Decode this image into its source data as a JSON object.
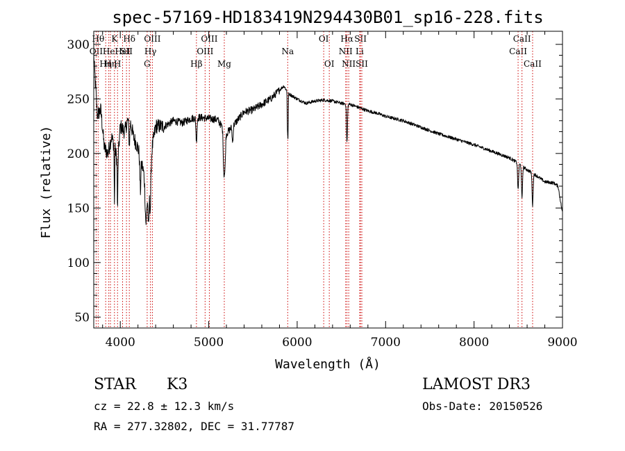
{
  "chart_data": {
    "type": "line",
    "title": "spec-57169-HD183419N294430B01_sp16-228.fits",
    "xlabel": "Wavelength (Å)",
    "ylabel": "Flux (relative)",
    "xlim": [
      3700,
      9000
    ],
    "ylim": [
      40,
      312
    ],
    "x_ticks": [
      4000,
      5000,
      6000,
      7000,
      8000,
      9000
    ],
    "y_ticks": [
      50,
      100,
      150,
      200,
      250,
      300
    ],
    "continuum": [
      [
        3700,
        290
      ],
      [
        3740,
        235
      ],
      [
        3780,
        240
      ],
      [
        3820,
        205
      ],
      [
        3860,
        200
      ],
      [
        3900,
        215
      ],
      [
        3940,
        205
      ],
      [
        3970,
        190
      ],
      [
        4000,
        225
      ],
      [
        4050,
        220
      ],
      [
        4100,
        235
      ],
      [
        4150,
        215
      ],
      [
        4200,
        205
      ],
      [
        4250,
        188
      ],
      [
        4290,
        172
      ],
      [
        4320,
        155
      ],
      [
        4360,
        205
      ],
      [
        4400,
        225
      ],
      [
        4500,
        225
      ],
      [
        4600,
        230
      ],
      [
        4700,
        228
      ],
      [
        4800,
        232
      ],
      [
        4900,
        233
      ],
      [
        5000,
        232
      ],
      [
        5100,
        231
      ],
      [
        5200,
        218
      ],
      [
        5300,
        228
      ],
      [
        5400,
        238
      ],
      [
        5500,
        240
      ],
      [
        5600,
        245
      ],
      [
        5700,
        250
      ],
      [
        5800,
        258
      ],
      [
        5850,
        262
      ],
      [
        5900,
        255
      ],
      [
        6000,
        250
      ],
      [
        6100,
        246
      ],
      [
        6200,
        248
      ],
      [
        6300,
        249
      ],
      [
        6400,
        248
      ],
      [
        6500,
        246
      ],
      [
        6600,
        245
      ],
      [
        6700,
        242
      ],
      [
        6800,
        239
      ],
      [
        6900,
        237
      ],
      [
        7000,
        234
      ],
      [
        7200,
        230
      ],
      [
        7400,
        224
      ],
      [
        7600,
        218
      ],
      [
        7800,
        213
      ],
      [
        8000,
        208
      ],
      [
        8200,
        202
      ],
      [
        8400,
        196
      ],
      [
        8500,
        191
      ],
      [
        8600,
        185
      ],
      [
        8700,
        180
      ],
      [
        8800,
        174
      ],
      [
        8900,
        173
      ],
      [
        8950,
        170
      ],
      [
        9000,
        145
      ]
    ],
    "absorption_features": [
      [
        3934,
        1,
        55
      ],
      [
        3969,
        1,
        45
      ],
      [
        4102,
        2,
        25
      ],
      [
        4227,
        2,
        30
      ],
      [
        4290,
        3,
        35
      ],
      [
        4320,
        2,
        25
      ],
      [
        4340,
        2,
        30
      ],
      [
        4861,
        2,
        22
      ],
      [
        5167,
        2,
        20
      ],
      [
        5174,
        2,
        25
      ],
      [
        5184,
        2,
        30
      ],
      [
        5270,
        2,
        15
      ],
      [
        5890,
        1,
        30
      ],
      [
        5896,
        1,
        40
      ],
      [
        6563,
        2,
        35
      ],
      [
        8498,
        2,
        25
      ],
      [
        8542,
        2,
        30
      ],
      [
        8662,
        2,
        30
      ]
    ],
    "line_markers": [
      {
        "wavelength": 3727,
        "label": "OII",
        "row": 1
      },
      {
        "wavelength": 3750,
        "label": "Hθ",
        "row": 0
      },
      {
        "wavelength": 3835,
        "label": "Hη",
        "row": 2
      },
      {
        "wavelength": 3870,
        "label": "He",
        "row": 1
      },
      {
        "wavelength": 3889,
        "label": "Hη",
        "row": 2
      },
      {
        "wavelength": 3934,
        "label": "K",
        "row": 0
      },
      {
        "wavelength": 3969,
        "label": "H",
        "row": 2
      },
      {
        "wavelength": 4026,
        "label": "HeI",
        "row": 1
      },
      {
        "wavelength": 4070,
        "label": "SII",
        "row": 1
      },
      {
        "wavelength": 4102,
        "label": "Hδ",
        "row": 0
      },
      {
        "wavelength": 4304,
        "label": "G",
        "row": 2
      },
      {
        "wavelength": 4341,
        "label": "Hγ",
        "row": 1
      },
      {
        "wavelength": 4363,
        "label": "OIII",
        "row": 0
      },
      {
        "wavelength": 4861,
        "label": "Hβ",
        "row": 2
      },
      {
        "wavelength": 4959,
        "label": "OIII",
        "row": 1
      },
      {
        "wavelength": 5007,
        "label": "OIII",
        "row": 0
      },
      {
        "wavelength": 5176,
        "label": "Mg",
        "row": 2
      },
      {
        "wavelength": 5893,
        "label": "Na",
        "row": 1
      },
      {
        "wavelength": 6300,
        "label": "OI",
        "row": 0
      },
      {
        "wavelength": 6363,
        "label": "OI",
        "row": 2
      },
      {
        "wavelength": 6548,
        "label": "NII",
        "row": 1
      },
      {
        "wavelength": 6563,
        "label": "Hα",
        "row": 0
      },
      {
        "wavelength": 6583,
        "label": "NII",
        "row": 2
      },
      {
        "wavelength": 6707,
        "label": "Li",
        "row": 1
      },
      {
        "wavelength": 6716,
        "label": "SII",
        "row": 0
      },
      {
        "wavelength": 6731,
        "label": "SII",
        "row": 2
      },
      {
        "wavelength": 8498,
        "label": "CaII",
        "row": 1
      },
      {
        "wavelength": 8542,
        "label": "CaII",
        "row": 0
      },
      {
        "wavelength": 8662,
        "label": "CaII",
        "row": 2
      }
    ]
  },
  "info": {
    "object_class": "STAR",
    "subclass": "K3",
    "cz": "cz = 22.8 ± 12.3 km/s",
    "coords": "RA = 277.32802, DEC =  31.77787",
    "survey": "LAMOST DR3",
    "obs_date": "Obs-Date: 20150526"
  },
  "colors": {
    "spectrum": "#000000",
    "marker_line": "#cc0000",
    "frame": "#000000"
  }
}
